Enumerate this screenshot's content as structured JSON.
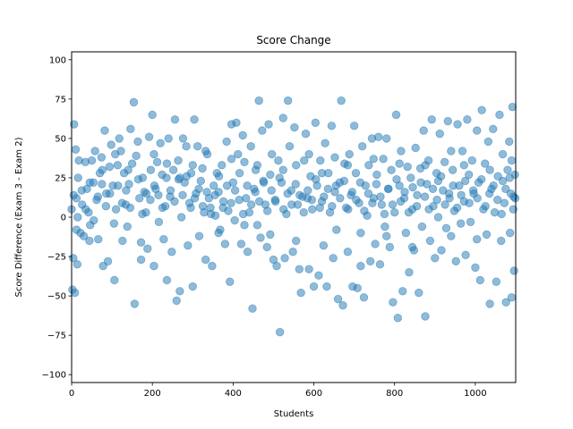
{
  "chart_data": {
    "type": "scatter",
    "title": "Score Change",
    "xlabel": "Students",
    "ylabel": "Score Difference (Exam 3 - Exam 2)",
    "xlim": [
      0,
      1100
    ],
    "ylim": [
      -105,
      105
    ],
    "x_ticks": [
      0,
      200,
      400,
      600,
      800,
      1000
    ],
    "y_ticks": [
      -100,
      -75,
      -50,
      -25,
      0,
      25,
      50,
      75,
      100
    ],
    "grid": false,
    "legend": "none",
    "point_color": "#1f77b4",
    "point_alpha": 0.5,
    "points": [
      [
        0,
        5
      ],
      [
        2,
        -46
      ],
      [
        4,
        -26
      ],
      [
        6,
        59
      ],
      [
        8,
        -48
      ],
      [
        10,
        43
      ],
      [
        12,
        12
      ],
      [
        14,
        -30
      ],
      [
        16,
        25
      ],
      [
        18,
        36
      ],
      [
        22,
        -10
      ],
      [
        26,
        8
      ],
      [
        30,
        -12
      ],
      [
        34,
        35
      ],
      [
        38,
        18
      ],
      [
        42,
        3
      ],
      [
        46,
        -5
      ],
      [
        50,
        36
      ],
      [
        54,
        22
      ],
      [
        58,
        42
      ],
      [
        62,
        11
      ],
      [
        66,
        -14
      ],
      [
        70,
        28
      ],
      [
        74,
        38
      ],
      [
        78,
        -31
      ],
      [
        82,
        55
      ],
      [
        86,
        15
      ],
      [
        90,
        -28
      ],
      [
        94,
        32
      ],
      [
        98,
        46
      ],
      [
        102,
        20
      ],
      [
        106,
        -40
      ],
      [
        110,
        5
      ],
      [
        114,
        33
      ],
      [
        118,
        50
      ],
      [
        122,
        42
      ],
      [
        126,
        -15
      ],
      [
        130,
        28
      ],
      [
        134,
        8
      ],
      [
        138,
        -6
      ],
      [
        142,
        21
      ],
      [
        146,
        56
      ],
      [
        150,
        34
      ],
      [
        154,
        73
      ],
      [
        156,
        -55
      ],
      [
        160,
        39
      ],
      [
        164,
        48
      ],
      [
        168,
        12
      ],
      [
        172,
        -27
      ],
      [
        176,
        25
      ],
      [
        180,
        16
      ],
      [
        184,
        3
      ],
      [
        188,
        -20
      ],
      [
        192,
        51
      ],
      [
        196,
        30
      ],
      [
        200,
        65
      ],
      [
        204,
        -31
      ],
      [
        208,
        18
      ],
      [
        212,
        35
      ],
      [
        216,
        -3
      ],
      [
        220,
        47
      ],
      [
        224,
        27
      ],
      [
        228,
        -14
      ],
      [
        232,
        7
      ],
      [
        236,
        -40
      ],
      [
        240,
        50
      ],
      [
        244,
        13
      ],
      [
        248,
        -22
      ],
      [
        252,
        30
      ],
      [
        256,
        62
      ],
      [
        260,
        -53
      ],
      [
        264,
        36
      ],
      [
        268,
        -47
      ],
      [
        272,
        0
      ],
      [
        276,
        50
      ],
      [
        280,
        22
      ],
      [
        284,
        45
      ],
      [
        288,
        -18
      ],
      [
        292,
        9
      ],
      [
        296,
        28
      ],
      [
        300,
        -44
      ],
      [
        304,
        62
      ],
      [
        308,
        15
      ],
      [
        312,
        45
      ],
      [
        316,
        -12
      ],
      [
        320,
        23
      ],
      [
        324,
        31
      ],
      [
        328,
        3
      ],
      [
        332,
        -27
      ],
      [
        336,
        40
      ],
      [
        340,
        12
      ],
      [
        344,
        6
      ],
      [
        348,
        -31
      ],
      [
        352,
        20
      ],
      [
        356,
        1
      ],
      [
        360,
        28
      ],
      [
        364,
        16
      ],
      [
        368,
        -8
      ],
      [
        372,
        33
      ],
      [
        376,
        10
      ],
      [
        380,
        -17
      ],
      [
        384,
        48
      ],
      [
        388,
        4
      ],
      [
        392,
        -41
      ],
      [
        396,
        59
      ],
      [
        400,
        22
      ],
      [
        404,
        -2
      ],
      [
        408,
        60
      ],
      [
        412,
        40
      ],
      [
        416,
        28
      ],
      [
        420,
        -17
      ],
      [
        424,
        52
      ],
      [
        428,
        35
      ],
      [
        432,
        12
      ],
      [
        436,
        -22
      ],
      [
        440,
        3
      ],
      [
        444,
        45
      ],
      [
        448,
        -58
      ],
      [
        452,
        18
      ],
      [
        456,
        30
      ],
      [
        460,
        -5
      ],
      [
        464,
        74
      ],
      [
        468,
        -13
      ],
      [
        472,
        55
      ],
      [
        476,
        22
      ],
      [
        480,
        8
      ],
      [
        484,
        -19
      ],
      [
        488,
        59
      ],
      [
        492,
        27
      ],
      [
        496,
        40
      ],
      [
        500,
        -27
      ],
      [
        504,
        11
      ],
      [
        508,
        -31
      ],
      [
        512,
        36
      ],
      [
        516,
        -73
      ],
      [
        520,
        22
      ],
      [
        524,
        63
      ],
      [
        528,
        -26
      ],
      [
        532,
        2
      ],
      [
        536,
        74
      ],
      [
        540,
        45
      ],
      [
        544,
        17
      ],
      [
        548,
        -22
      ],
      [
        552,
        57
      ],
      [
        556,
        33
      ],
      [
        560,
        8
      ],
      [
        564,
        -33
      ],
      [
        568,
        -48
      ],
      [
        572,
        13
      ],
      [
        576,
        36
      ],
      [
        580,
        53
      ],
      [
        584,
        12
      ],
      [
        588,
        -33
      ],
      [
        592,
        26
      ],
      [
        596,
        5
      ],
      [
        600,
        -44
      ],
      [
        604,
        60
      ],
      [
        608,
        20
      ],
      [
        612,
        -37
      ],
      [
        616,
        36
      ],
      [
        620,
        10
      ],
      [
        624,
        -18
      ],
      [
        628,
        47
      ],
      [
        632,
        -44
      ],
      [
        636,
        28
      ],
      [
        640,
        3
      ],
      [
        644,
        58
      ],
      [
        648,
        -26
      ],
      [
        652,
        16
      ],
      [
        656,
        -8
      ],
      [
        660,
        -52
      ],
      [
        664,
        22
      ],
      [
        668,
        74
      ],
      [
        672,
        -56
      ],
      [
        676,
        34
      ],
      [
        680,
        6
      ],
      [
        684,
        -22
      ],
      [
        688,
        40
      ],
      [
        692,
        14
      ],
      [
        696,
        -44
      ],
      [
        700,
        58
      ],
      [
        704,
        28
      ],
      [
        708,
        -45
      ],
      [
        712,
        9
      ],
      [
        716,
        -31
      ],
      [
        720,
        45
      ],
      [
        724,
        -51
      ],
      [
        728,
        20
      ],
      [
        732,
        1
      ],
      [
        736,
        33
      ],
      [
        740,
        -28
      ],
      [
        744,
        50
      ],
      [
        748,
        12
      ],
      [
        752,
        -17
      ],
      [
        756,
        27
      ],
      [
        760,
        51
      ],
      [
        764,
        -30
      ],
      [
        768,
        8
      ],
      [
        772,
        37
      ],
      [
        776,
        -6
      ],
      [
        780,
        50
      ],
      [
        784,
        18
      ],
      [
        788,
        -19
      ],
      [
        792,
        30
      ],
      [
        796,
        -54
      ],
      [
        800,
        3
      ],
      [
        804,
        65
      ],
      [
        808,
        -64
      ],
      [
        812,
        20
      ],
      [
        816,
        42
      ],
      [
        820,
        -47
      ],
      [
        824,
        12
      ],
      [
        828,
        -10
      ],
      [
        832,
        32
      ],
      [
        836,
        -35
      ],
      [
        840,
        25
      ],
      [
        844,
        5
      ],
      [
        848,
        -21
      ],
      [
        852,
        44
      ],
      [
        856,
        14
      ],
      [
        860,
        -48
      ],
      [
        864,
        31
      ],
      [
        868,
        -6
      ],
      [
        872,
        55
      ],
      [
        876,
        -63
      ],
      [
        880,
        21
      ],
      [
        884,
        36
      ],
      [
        888,
        -15
      ],
      [
        892,
        62
      ],
      [
        896,
        7
      ],
      [
        900,
        -26
      ],
      [
        904,
        28
      ],
      [
        908,
        0
      ],
      [
        912,
        53
      ],
      [
        916,
        -21
      ],
      [
        920,
        17
      ],
      [
        924,
        35
      ],
      [
        928,
        -7
      ],
      [
        932,
        61
      ],
      [
        936,
        12
      ],
      [
        940,
        -12
      ],
      [
        944,
        30
      ],
      [
        948,
        4
      ],
      [
        952,
        -28
      ],
      [
        956,
        59
      ],
      [
        960,
        20
      ],
      [
        964,
        -4
      ],
      [
        968,
        42
      ],
      [
        972,
        10
      ],
      [
        976,
        -24
      ],
      [
        980,
        62
      ],
      [
        984,
        27
      ],
      [
        988,
        -3
      ],
      [
        992,
        36
      ],
      [
        996,
        15
      ],
      [
        1000,
        -32
      ],
      [
        1004,
        55
      ],
      [
        1008,
        22
      ],
      [
        1012,
        -40
      ],
      [
        1016,
        68
      ],
      [
        1020,
        5
      ],
      [
        1024,
        34
      ],
      [
        1028,
        -11
      ],
      [
        1032,
        48
      ],
      [
        1036,
        -55
      ],
      [
        1040,
        18
      ],
      [
        1044,
        56
      ],
      [
        1048,
        3
      ],
      [
        1052,
        -41
      ],
      [
        1056,
        26
      ],
      [
        1060,
        65
      ],
      [
        1064,
        -15
      ],
      [
        1068,
        40
      ],
      [
        1072,
        9
      ],
      [
        1076,
        -54
      ],
      [
        1080,
        30
      ],
      [
        1084,
        48
      ],
      [
        1086,
        -10
      ],
      [
        1088,
        15
      ],
      [
        1090,
        -51
      ],
      [
        1092,
        70
      ],
      [
        1094,
        5
      ],
      [
        1096,
        -34
      ],
      [
        1098,
        27
      ],
      [
        1099,
        12
      ],
      [
        5,
        14
      ],
      [
        15,
        0
      ],
      [
        25,
        17
      ],
      [
        35,
        5
      ],
      [
        45,
        22
      ],
      [
        55,
        -2
      ],
      [
        65,
        13
      ],
      [
        75,
        21
      ],
      [
        85,
        7
      ],
      [
        95,
        15
      ],
      [
        105,
        -4
      ],
      [
        115,
        20
      ],
      [
        125,
        9
      ],
      [
        135,
        17
      ],
      [
        145,
        6
      ],
      [
        165,
        24
      ],
      [
        175,
        2
      ],
      [
        185,
        15
      ],
      [
        195,
        11
      ],
      [
        205,
        20
      ],
      [
        215,
        14
      ],
      [
        225,
        6
      ],
      [
        235,
        25
      ],
      [
        245,
        17
      ],
      [
        255,
        10
      ],
      [
        265,
        24
      ],
      [
        275,
        14
      ],
      [
        285,
        26
      ],
      [
        295,
        6
      ],
      [
        305,
        12
      ],
      [
        315,
        18
      ],
      [
        325,
        7
      ],
      [
        335,
        16
      ],
      [
        345,
        2
      ],
      [
        355,
        14
      ],
      [
        365,
        26
      ],
      [
        375,
        6
      ],
      [
        385,
        20
      ],
      [
        395,
        9
      ],
      [
        405,
        17
      ],
      [
        415,
        11
      ],
      [
        425,
        2
      ],
      [
        435,
        20
      ],
      [
        445,
        8
      ],
      [
        455,
        16
      ],
      [
        465,
        10
      ],
      [
        475,
        23
      ],
      [
        485,
        4
      ],
      [
        495,
        17
      ],
      [
        505,
        10
      ],
      [
        515,
        25
      ],
      [
        525,
        5
      ],
      [
        535,
        15
      ],
      [
        545,
        8
      ],
      [
        555,
        21
      ],
      [
        565,
        14
      ],
      [
        575,
        3
      ],
      [
        585,
        17
      ],
      [
        595,
        11
      ],
      [
        605,
        24
      ],
      [
        615,
        6
      ],
      [
        625,
        13
      ],
      [
        635,
        18
      ],
      [
        645,
        7
      ],
      [
        655,
        20
      ],
      [
        665,
        12
      ],
      [
        675,
        23
      ],
      [
        685,
        5
      ],
      [
        695,
        16
      ],
      [
        705,
        11
      ],
      [
        715,
        22
      ],
      [
        725,
        4
      ],
      [
        735,
        15
      ],
      [
        745,
        9
      ],
      [
        755,
        21
      ],
      [
        765,
        13
      ],
      [
        775,
        2
      ],
      [
        785,
        18
      ],
      [
        795,
        8
      ],
      [
        805,
        24
      ],
      [
        815,
        10
      ],
      [
        825,
        16
      ],
      [
        835,
        3
      ],
      [
        845,
        19
      ],
      [
        855,
        7
      ],
      [
        865,
        22
      ],
      [
        875,
        13
      ],
      [
        885,
        5
      ],
      [
        895,
        18
      ],
      [
        905,
        11
      ],
      [
        915,
        26
      ],
      [
        925,
        8
      ],
      [
        935,
        15
      ],
      [
        945,
        20
      ],
      [
        955,
        6
      ],
      [
        965,
        14
      ],
      [
        975,
        23
      ],
      [
        985,
        9
      ],
      [
        995,
        17
      ],
      [
        1005,
        12
      ],
      [
        1015,
        24
      ],
      [
        1025,
        7
      ],
      [
        1035,
        15
      ],
      [
        1045,
        20
      ],
      [
        1055,
        11
      ],
      [
        1065,
        2
      ],
      [
        1075,
        18
      ],
      [
        1085,
        25
      ],
      [
        1095,
        13
      ],
      [
        12,
        -8
      ],
      [
        44,
        -15
      ],
      [
        76,
        30
      ],
      [
        108,
        40
      ],
      [
        140,
        30
      ],
      [
        172,
        -16
      ],
      [
        204,
        40
      ],
      [
        236,
        34
      ],
      [
        268,
        25
      ],
      [
        300,
        33
      ],
      [
        332,
        42
      ],
      [
        364,
        -10
      ],
      [
        396,
        37
      ],
      [
        428,
        -5
      ],
      [
        460,
        33
      ],
      [
        492,
        -11
      ],
      [
        524,
        30
      ],
      [
        556,
        -15
      ],
      [
        588,
        40
      ],
      [
        620,
        28
      ],
      [
        652,
        38
      ],
      [
        684,
        33
      ],
      [
        716,
        -10
      ],
      [
        748,
        37
      ],
      [
        780,
        -12
      ],
      [
        812,
        34
      ],
      [
        844,
        -19
      ],
      [
        876,
        33
      ],
      [
        908,
        23
      ],
      [
        940,
        42
      ],
      [
        972,
        33
      ],
      [
        1004,
        -14
      ],
      [
        1036,
        30
      ],
      [
        1068,
        23
      ],
      [
        1090,
        36
      ]
    ]
  }
}
